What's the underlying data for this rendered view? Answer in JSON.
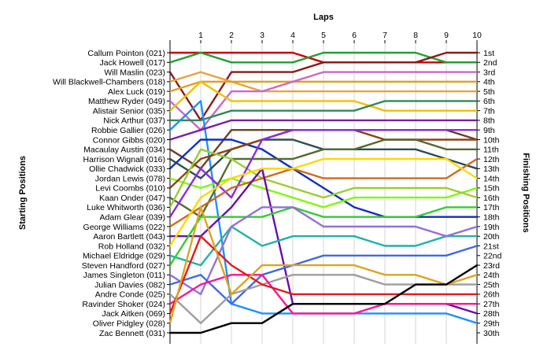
{
  "chart_data": {
    "type": "line",
    "title": "",
    "xlabel": "Laps",
    "ylabel_left": "Starting Positions",
    "ylabel_right": "Finishing Positions",
    "x": [
      0,
      1,
      2,
      3,
      4,
      5,
      6,
      7,
      8,
      9,
      10
    ],
    "x_tick_labels": [
      "1",
      "2",
      "3",
      "4",
      "5",
      "6",
      "7",
      "8",
      "9",
      "10"
    ],
    "y_range": [
      1,
      30
    ],
    "y_inverted": true,
    "grid": "vertical lines at each lap",
    "finishing_positions": [
      "1st",
      "2nd",
      "3rd",
      "4th",
      "5th",
      "6th",
      "7th",
      "8th",
      "9th",
      "10th",
      "11th",
      "12th",
      "13th",
      "14th",
      "15th",
      "16th",
      "17th",
      "18th",
      "19th",
      "20th",
      "21st",
      "22nd",
      "23rd",
      "24th",
      "25th",
      "26th",
      "27th",
      "28th",
      "29th",
      "30th"
    ],
    "series": [
      {
        "name": "Callum Pointon (021)",
        "color": "#cc0000",
        "values": [
          1,
          1,
          1,
          1,
          1,
          2,
          2,
          2,
          2,
          2,
          2
        ]
      },
      {
        "name": "Jack Howell (017)",
        "color": "#22a033",
        "values": [
          2,
          1,
          2,
          2,
          2,
          1,
          1,
          1,
          1,
          2,
          2
        ]
      },
      {
        "name": "Will Maslin (023)",
        "color": "#8b1a1a",
        "values": [
          3,
          8,
          3,
          3,
          3,
          2,
          2,
          2,
          2,
          1,
          1
        ]
      },
      {
        "name": "Will Blackwell-Chambers (018)",
        "color": "#e8a33d",
        "values": [
          4,
          3,
          4,
          5,
          5,
          5,
          5,
          5,
          5,
          5,
          5
        ]
      },
      {
        "name": "Alex Luck (019)",
        "color": "#e0a020",
        "values": [
          5,
          4,
          4,
          4,
          4,
          4,
          4,
          4,
          4,
          4,
          4
        ]
      },
      {
        "name": "Matthew Ryder (049)",
        "color": "#cc66cc",
        "values": [
          6,
          9,
          5,
          5,
          4,
          3,
          3,
          3,
          3,
          3,
          3
        ]
      },
      {
        "name": "Alistair Senior (035)",
        "color": "#f0c000",
        "values": [
          7,
          4,
          6,
          6,
          6,
          6,
          6,
          7,
          7,
          7,
          7
        ]
      },
      {
        "name": "Nick Arthur (037)",
        "color": "#2e8b57",
        "values": [
          8,
          8,
          7,
          7,
          7,
          7,
          7,
          6,
          6,
          6,
          6
        ]
      },
      {
        "name": "Robbie Gallier (026)",
        "color": "#1e90ff",
        "values": [
          9,
          6,
          27,
          28,
          28,
          28,
          28,
          28,
          28,
          28,
          29
        ]
      },
      {
        "name": "Connor Gibbs (020)",
        "color": "#7b1fa2",
        "values": [
          10,
          9,
          8,
          8,
          8,
          8,
          8,
          8,
          8,
          8,
          8
        ]
      },
      {
        "name": "Macaulay Austin (034)",
        "color": "#6b4226",
        "values": [
          11,
          13,
          9,
          9,
          9,
          9,
          9,
          9,
          9,
          9,
          10
        ]
      },
      {
        "name": "Harrison Wignall (016)",
        "color": "#2f4f4f",
        "values": [
          12,
          14,
          11,
          10,
          10,
          11,
          11,
          11,
          11,
          12,
          13
        ]
      },
      {
        "name": "Ollie Chadwick (033)",
        "color": "#1030c0",
        "values": [
          13,
          10,
          10,
          11,
          13,
          15,
          17,
          18,
          18,
          18,
          18
        ]
      },
      {
        "name": "Jordan Lewis (078)",
        "color": "#7cfc00",
        "values": [
          14,
          15,
          14,
          15,
          16,
          17,
          16,
          16,
          16,
          16,
          15
        ]
      },
      {
        "name": "Levi Coombs (010)",
        "color": "#8b4513",
        "values": [
          15,
          12,
          11,
          10,
          9,
          9,
          9,
          10,
          10,
          10,
          10
        ]
      },
      {
        "name": "Kaan Onder (047)",
        "color": "#556b2f",
        "values": [
          16,
          18,
          12,
          12,
          12,
          11,
          11,
          10,
          10,
          11,
          11
        ]
      },
      {
        "name": "Luke Whitworth (036)",
        "color": "#9acd32",
        "values": [
          17,
          11,
          12,
          14,
          15,
          16,
          15,
          15,
          15,
          15,
          16
        ]
      },
      {
        "name": "Adam Glear (039)",
        "color": "#8a2be2",
        "values": [
          18,
          13,
          16,
          10,
          9,
          9,
          9,
          9,
          9,
          9,
          9
        ]
      },
      {
        "name": "George Williams (022)",
        "color": "#d2691e",
        "values": [
          19,
          17,
          15,
          14,
          13,
          14,
          14,
          14,
          14,
          14,
          12
        ]
      },
      {
        "name": "Aaron Bartlett (043)",
        "color": "#6a0dad",
        "values": [
          20,
          20,
          17,
          13,
          27,
          27,
          27,
          27,
          27,
          27,
          28
        ]
      },
      {
        "name": "Rob Holland (032)",
        "color": "#ffd700",
        "values": [
          21,
          16,
          14,
          13,
          13,
          12,
          12,
          12,
          12,
          12,
          14
        ]
      },
      {
        "name": "Michael Eldridge (029)",
        "color": "#20b2aa",
        "values": [
          22,
          23,
          19,
          21,
          20,
          20,
          20,
          21,
          21,
          20,
          20
        ]
      },
      {
        "name": "Steven Handford (027)",
        "color": "#32cd32",
        "values": [
          23,
          18,
          18,
          18,
          17,
          18,
          18,
          18,
          18,
          17,
          17
        ]
      },
      {
        "name": "James Singleton (011)",
        "color": "#9370db",
        "values": [
          24,
          26,
          19,
          17,
          17,
          19,
          19,
          19,
          19,
          20,
          19
        ]
      },
      {
        "name": "Julian Davies (082)",
        "color": "#4169e1",
        "values": [
          25,
          24,
          27,
          24,
          23,
          22,
          22,
          22,
          22,
          22,
          21
        ]
      },
      {
        "name": "Andre Conde (025)",
        "color": "#9e9e9e",
        "values": [
          26,
          29,
          26,
          25,
          24,
          24,
          24,
          25,
          25,
          25,
          25
        ]
      },
      {
        "name": "Ravinder Shoker (024)",
        "color": "#ff1493",
        "values": [
          27,
          25,
          24,
          24,
          28,
          28,
          28,
          27,
          27,
          27,
          27
        ]
      },
      {
        "name": "Jack Aitken (069)",
        "color": "#e41a1c",
        "values": [
          28,
          20,
          23,
          25,
          26,
          26,
          26,
          26,
          26,
          26,
          26
        ]
      },
      {
        "name": "Oliver Pidgley (028)",
        "color": "#daa520",
        "values": [
          29,
          17,
          26,
          23,
          23,
          23,
          23,
          24,
          24,
          25,
          24
        ]
      },
      {
        "name": "Zac Bennett (031)",
        "color": "#000000",
        "values": [
          30,
          30,
          29,
          29,
          27,
          27,
          27,
          27,
          25,
          25,
          23
        ]
      }
    ]
  }
}
